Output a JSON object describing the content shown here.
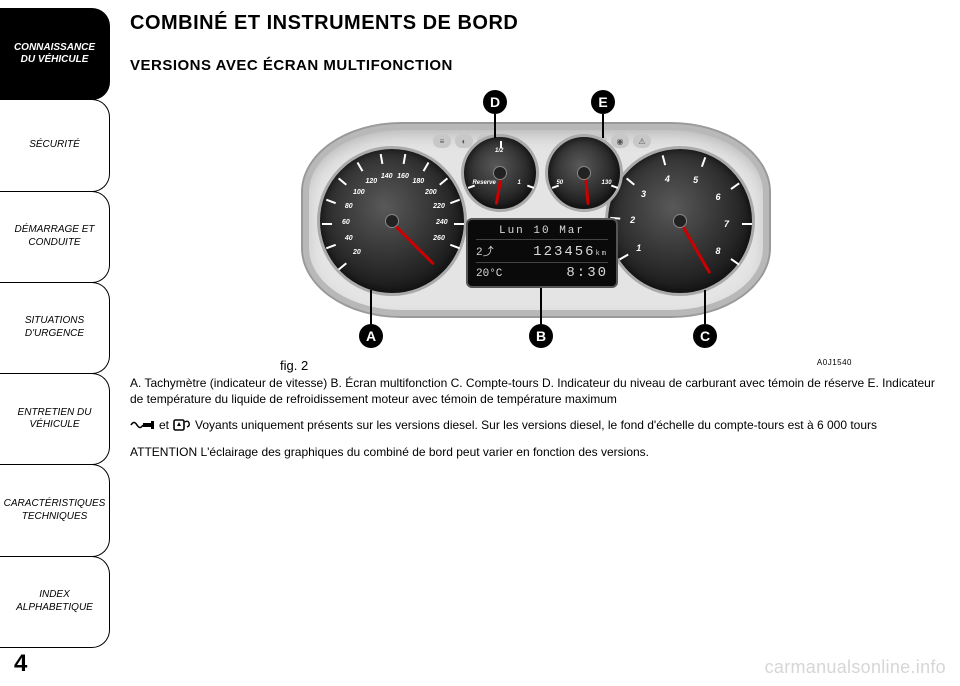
{
  "sidebar": {
    "tabs": [
      {
        "label": "CONNAISSANCE\nDU VÉHICULE",
        "active": true
      },
      {
        "label": "SÉCURITÉ",
        "active": false
      },
      {
        "label": "DÉMARRAGE ET\nCONDUITE",
        "active": false
      },
      {
        "label": "SITUATIONS\nD'URGENCE",
        "active": false
      },
      {
        "label": "ENTRETIEN DU\nVÉHICULE",
        "active": false
      },
      {
        "label": "CARACTÉRISTIQUES\nTECHNIQUES",
        "active": false
      },
      {
        "label": "INDEX\nALPHABETIQUE",
        "active": false
      }
    ]
  },
  "content": {
    "title": "COMBINÉ ET INSTRUMENTS DE BORD",
    "subtitle": "VERSIONS AVEC ÉCRAN MULTIFONCTION"
  },
  "figure": {
    "number_label": "fig. 2",
    "code": "A0J1540",
    "callouts": {
      "A": "A",
      "B": "B",
      "C": "C",
      "D": "D",
      "E": "E"
    },
    "speedometer": {
      "type": "gauge",
      "unit": "km/h",
      "values": [
        20,
        40,
        60,
        80,
        100,
        120,
        140,
        160,
        180,
        200,
        220,
        240,
        260
      ],
      "tick_angles_deg": [
        -130,
        -110,
        -90,
        -70,
        -50,
        -30,
        -10,
        10,
        30,
        50,
        70,
        90,
        110
      ],
      "needle_angle_deg": -45,
      "face_color": "#1c1c1c",
      "tick_color": "#ffffff",
      "number_color": "#ffffff",
      "number_fontsize": 7,
      "needle_color": "#cc0000"
    },
    "tachometer": {
      "type": "gauge",
      "values": [
        1,
        2,
        3,
        4,
        5,
        6,
        7,
        8
      ],
      "tick_angles_deg": [
        -120,
        -85,
        -50,
        -15,
        20,
        55,
        90,
        125
      ],
      "needle_angle_deg": -30,
      "redline_from": 7,
      "face_color": "#1c1c1c",
      "tick_color": "#ffffff",
      "number_color": "#ffffff",
      "number_fontsize": 9,
      "needle_color": "#cc0000"
    },
    "fuel_gauge": {
      "type": "gauge",
      "labels": [
        "Reserve",
        "1/2",
        "1"
      ],
      "needle_angle_deg": 10,
      "face_color": "#1c1c1c",
      "needle_color": "#cc0000"
    },
    "temp_gauge": {
      "type": "gauge",
      "labels": [
        "50",
        "130"
      ],
      "unit": "°C",
      "needle_angle_deg": -5,
      "face_color": "#1c1c1c",
      "needle_color": "#cc0000"
    },
    "display": {
      "background": "#0a0a0a",
      "text_color": "#d9d9d9",
      "line1": "Lun  10  Mar",
      "gear": "2",
      "gear_icon": "⤴",
      "odometer": "123456",
      "odo_unit": "km",
      "temp": "20°C",
      "clock": "8:30"
    },
    "styling": {
      "body_bg": "#e4e4e4",
      "body_border": "#999999",
      "bezel_color": "#aaaaaa",
      "callout_bg": "#000000",
      "callout_fg": "#ffffff",
      "lead_color": "#000000"
    }
  },
  "captions": {
    "legend": "A. Tachymètre (indicateur de vitesse) B. Écran multifonction C. Compte-tours D. Indicateur du niveau de carburant avec témoin de réserve E. Indicateur de température du liquide de refroidissement moteur avec témoin de température maximum",
    "icons_conj": "et",
    "icons_text": "Voyants uniquement présents sur les versions diesel. Sur les versions diesel, le fond d'échelle du compte-tours est à 6 000 tours",
    "attention": "ATTENTION L'éclairage des graphiques du combiné de bord peut varier en fonction des versions."
  },
  "footer": {
    "page_number": "4",
    "watermark": "carmanualsonline.info"
  },
  "colors": {
    "page_bg": "#ffffff",
    "text": "#000000",
    "watermark": "#d6d6d6"
  }
}
